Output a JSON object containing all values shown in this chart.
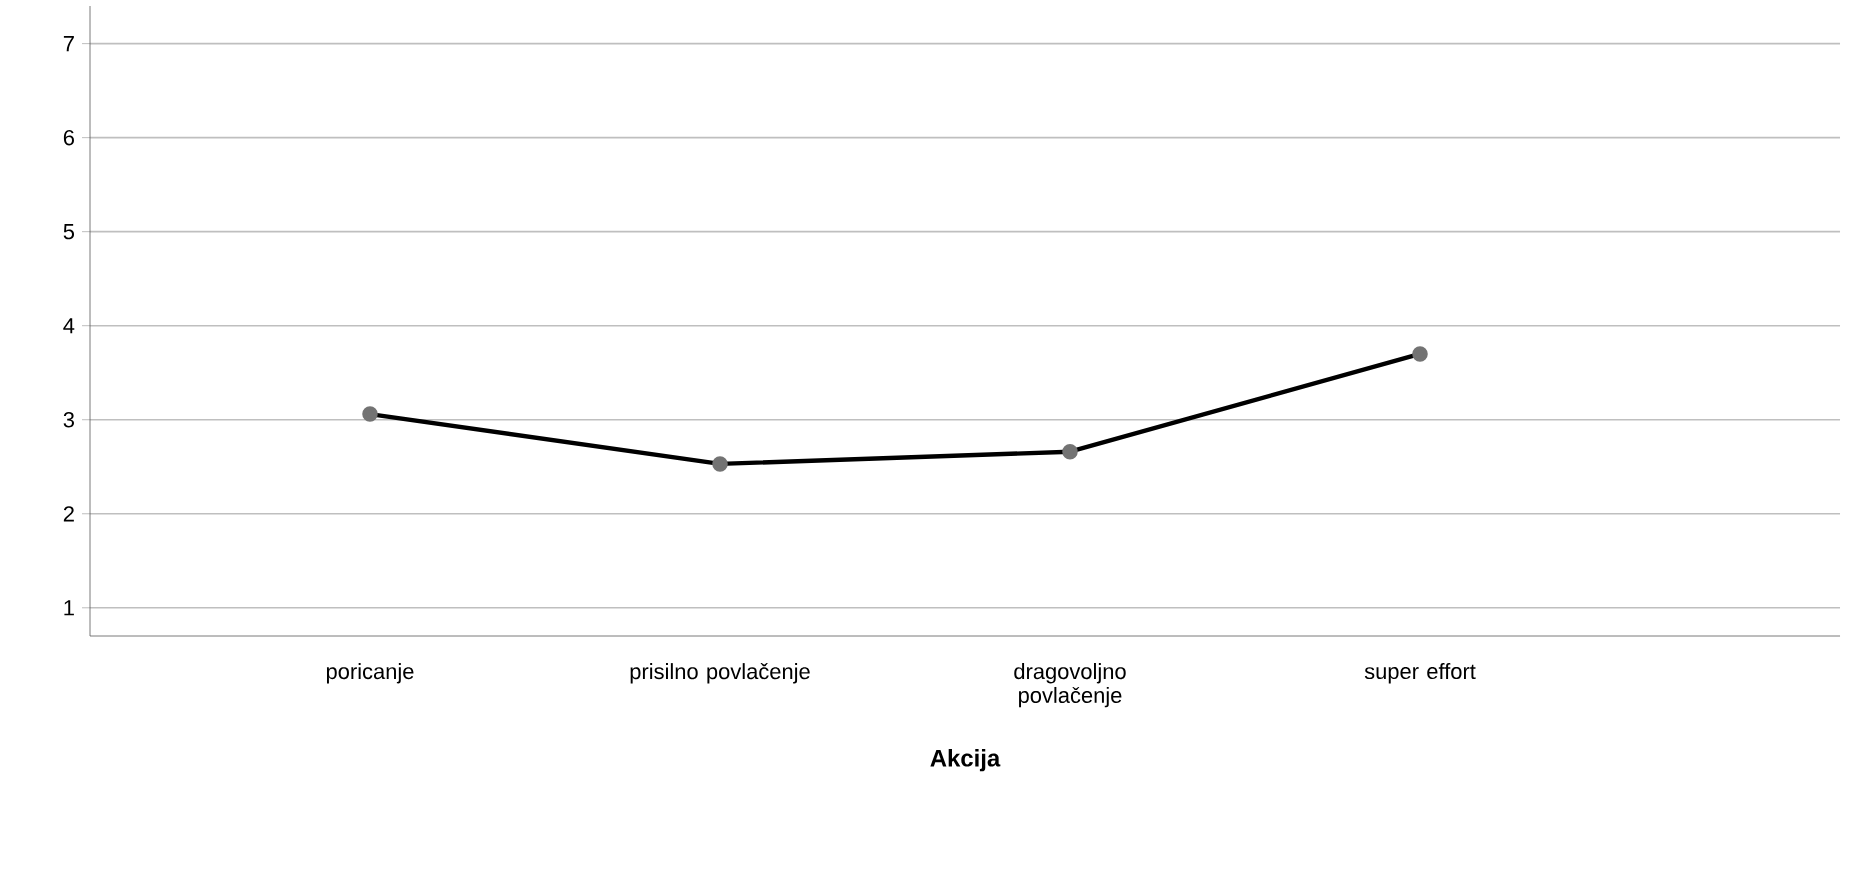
{
  "chart_data": {
    "type": "line",
    "xlabel": "Akcija",
    "categories": [
      "poricanje",
      "prisilno povlačenje",
      "dragovoljno povlačenje",
      "super effort"
    ],
    "series": [
      {
        "color": "#000000",
        "values": [
          3.06,
          2.53,
          2.66,
          3.7
        ]
      }
    ],
    "ylim": [
      0.7,
      7.4
    ],
    "yticks": [
      1,
      2,
      3,
      4,
      5,
      6,
      7
    ],
    "grid": "y",
    "marker": "circle",
    "line_style": "solid"
  }
}
